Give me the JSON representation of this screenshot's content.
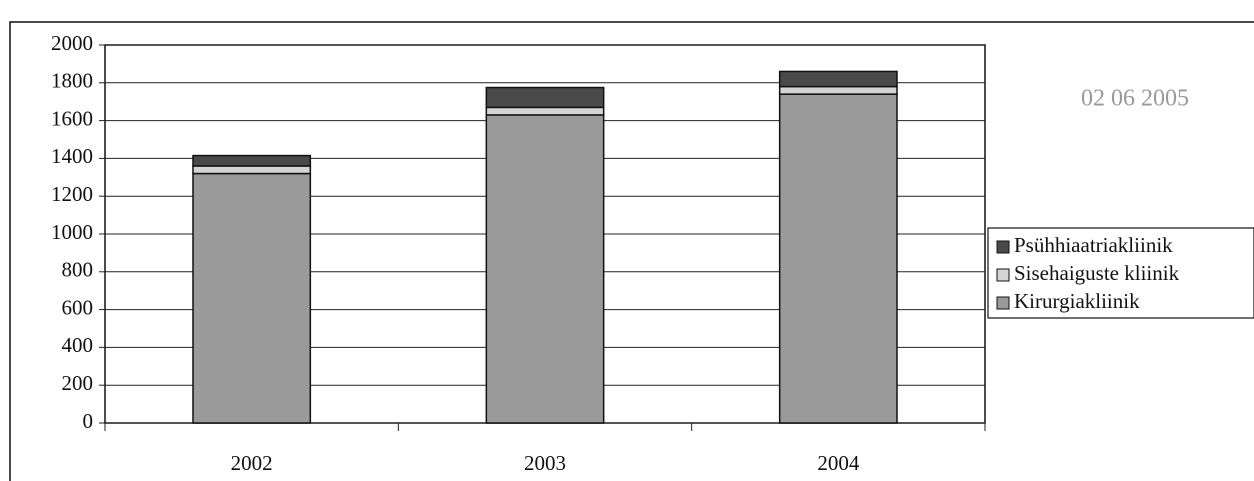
{
  "chart_data": {
    "type": "stacked_bar",
    "categories": [
      "2002",
      "2003",
      "2004"
    ],
    "series": [
      {
        "name": "Kirurgiakliinik",
        "color": "#9a9a9a",
        "values": [
          1320,
          1630,
          1740
        ]
      },
      {
        "name": "Sisehaiguste kliinik",
        "color": "#d4d4d4",
        "values": [
          40,
          40,
          40
        ]
      },
      {
        "name": "Psühhiaatriakliinik",
        "color": "#4a4a4a",
        "values": [
          55,
          105,
          80
        ]
      }
    ],
    "ylim": [
      0,
      2000
    ],
    "yticks": [
      0,
      200,
      400,
      600,
      800,
      1000,
      1200,
      1400,
      1600,
      1800,
      2000
    ],
    "grid": true,
    "legend": "right",
    "annotation": "02 06 2005"
  }
}
